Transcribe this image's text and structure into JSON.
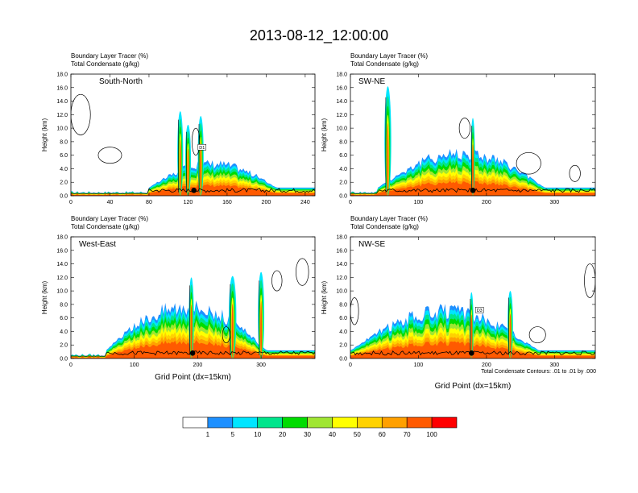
{
  "figure": {
    "title": "2013-08-12_12:00:00",
    "contour_note": "Total Condensate Contours: .01 to .01 by .000"
  },
  "chart_data": [
    {
      "type": "heatmap",
      "title": "South-North",
      "header_lines": [
        "Boundary Layer Tracer    (%)",
        "Total Condensate    (g/kg)"
      ],
      "ylabel": "Height (km)",
      "xlabel": "",
      "ylim": [
        0,
        18
      ],
      "xlim": [
        0,
        250
      ],
      "x_ticks": [
        0,
        40,
        80,
        120,
        160,
        200,
        240
      ],
      "y_ticks": [
        0,
        2,
        4,
        6,
        8,
        10,
        12,
        14,
        16,
        18
      ],
      "y_tick_labels": [
        "0.0",
        "2.0",
        "4.0",
        "6.0",
        "8.0",
        "10.0",
        "12.0",
        "14.0",
        "16.0",
        "18.0"
      ],
      "marker_x": 126,
      "tag": "D1",
      "tag_x": 131,
      "columns": [
        [
          112,
          12.5,
          3
        ],
        [
          120,
          10.5,
          3
        ],
        [
          133,
          11.8,
          3
        ]
      ],
      "mass_l": 80,
      "mass_r": 250,
      "mass_top": 4.3,
      "contour_blobs": [
        [
          10,
          12,
          10,
          3
        ],
        [
          128,
          8,
          4,
          2
        ],
        [
          40,
          6,
          12,
          1.2
        ]
      ]
    },
    {
      "type": "heatmap",
      "title": "SW-NE",
      "header_lines": [
        "Boundary Layer Tracer    (%)",
        "Total Condensate    (g/kg)"
      ],
      "ylabel": "Height (km)",
      "xlabel": "",
      "ylim": [
        0,
        18
      ],
      "xlim": [
        0,
        360
      ],
      "x_ticks": [
        0,
        100,
        200,
        300
      ],
      "y_ticks": [
        0,
        2,
        4,
        6,
        8,
        10,
        12,
        14,
        16,
        18
      ],
      "y_tick_labels": [
        "0.0",
        "2.0",
        "4.0",
        "6.0",
        "8.0",
        "10.0",
        "12.0",
        "14.0",
        "16.0",
        "18.0"
      ],
      "marker_x": 180,
      "tag": "",
      "tag_x": 0,
      "columns": [
        [
          55,
          16.2,
          5
        ],
        [
          180,
          11.5,
          3
        ]
      ],
      "mass_l": 40,
      "mass_r": 360,
      "mass_top": 6.2,
      "contour_blobs": [
        [
          168,
          10,
          8,
          1.5
        ],
        [
          262,
          4.8,
          18,
          1.6
        ],
        [
          330,
          3.3,
          8,
          1.2
        ]
      ]
    },
    {
      "type": "heatmap",
      "title": "West-East",
      "header_lines": [
        "Boundary Layer Tracer    (%)",
        "Total Condensate    (g/kg)"
      ],
      "ylabel": "Height (km)",
      "xlabel": "Grid Point (dx=15km)",
      "ylim": [
        0,
        18
      ],
      "xlim": [
        0,
        385
      ],
      "x_ticks": [
        0,
        100,
        200,
        300
      ],
      "y_ticks": [
        0,
        2,
        4,
        6,
        8,
        10,
        12,
        14,
        16,
        18
      ],
      "y_tick_labels": [
        "0.0",
        "2.0",
        "4.0",
        "6.0",
        "8.0",
        "10.0",
        "12.0",
        "14.0",
        "16.0",
        "18.0"
      ],
      "marker_x": 192,
      "tag": "",
      "tag_x": 0,
      "columns": [
        [
          190,
          12,
          4
        ],
        [
          255,
          12.2,
          6
        ],
        [
          300,
          12.8,
          5
        ]
      ],
      "mass_l": 55,
      "mass_r": 385,
      "mass_top": 8.0,
      "contour_blobs": [
        [
          365,
          12.8,
          10,
          2
        ],
        [
          325,
          11.5,
          8,
          1.5
        ],
        [
          245,
          3.5,
          6,
          1.2
        ]
      ]
    },
    {
      "type": "heatmap",
      "title": "NW-SE",
      "header_lines": [
        "Boundary Layer Tracer    (%)",
        "Total Condensate    (g/kg)"
      ],
      "ylabel": "Height (km)",
      "xlabel": "Grid Point (dx=15km)",
      "ylim": [
        0,
        18
      ],
      "xlim": [
        0,
        360
      ],
      "x_ticks": [
        0,
        100,
        200,
        300
      ],
      "y_ticks": [
        0,
        2,
        4,
        6,
        8,
        10,
        12,
        14,
        16,
        18
      ],
      "y_tick_labels": [
        "0.0",
        "2.0",
        "4.0",
        "6.0",
        "8.0",
        "10.0",
        "12.0",
        "14.0",
        "16.0",
        "18.0"
      ],
      "marker_x": 178,
      "tag": "D3",
      "tag_x": 185,
      "columns": [
        [
          178,
          9.8,
          3
        ],
        [
          235,
          10,
          4
        ]
      ],
      "mass_l": 0,
      "mass_r": 360,
      "mass_top": 7.0,
      "contour_blobs": [
        [
          352,
          11.5,
          8,
          2.5
        ],
        [
          6,
          7,
          6,
          2
        ],
        [
          275,
          3.5,
          12,
          1.2
        ]
      ]
    }
  ],
  "colorbar": {
    "levels": [
      1,
      5,
      10,
      20,
      30,
      40,
      50,
      60,
      70,
      100
    ],
    "labels": [
      "1",
      "5",
      "10",
      "20",
      "30",
      "40",
      "50",
      "60",
      "70",
      "100"
    ],
    "colors": [
      "#ffffff",
      "#1e90ff",
      "#00e5ff",
      "#00e58c",
      "#00dc00",
      "#a0e632",
      "#ffff00",
      "#ffd200",
      "#ffa000",
      "#ff5a00",
      "#ff0000"
    ]
  }
}
